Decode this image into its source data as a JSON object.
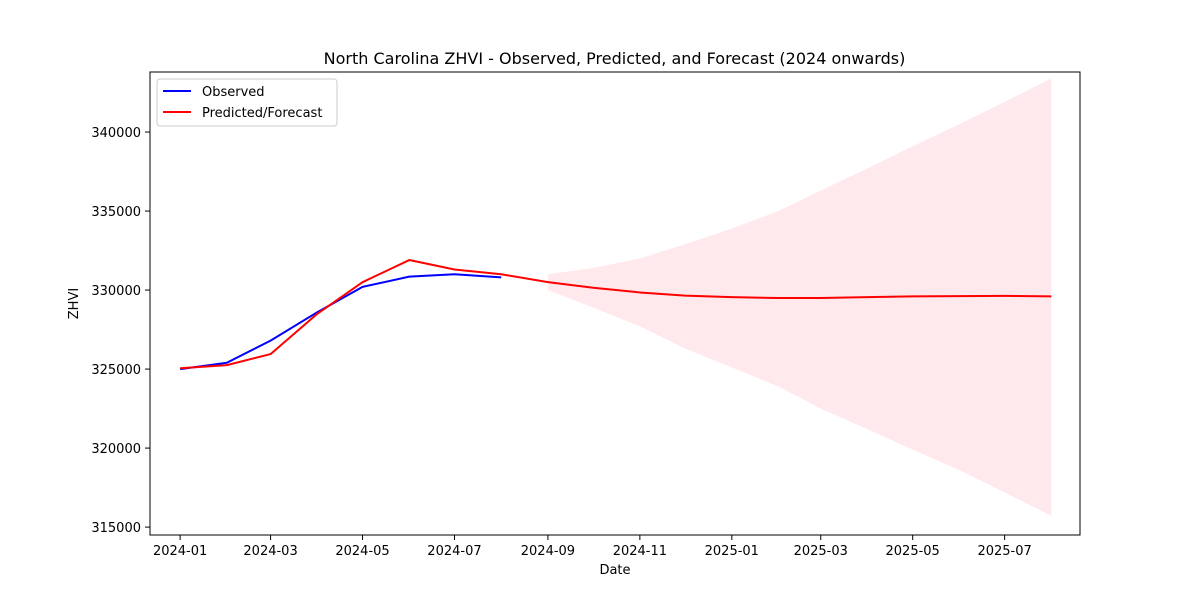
{
  "chart_data": {
    "type": "line",
    "title": "North Carolina ZHVI - Observed, Predicted, and Forecast (2024 onwards)",
    "xlabel": "Date",
    "ylabel": "ZHVI",
    "x_axis": {
      "type": "date",
      "range": [
        "2023-12-12",
        "2025-08-20"
      ],
      "ticks": [
        "2024-01-01",
        "2024-03-01",
        "2024-05-01",
        "2024-07-01",
        "2024-09-01",
        "2024-11-01",
        "2025-01-01",
        "2025-03-01",
        "2025-05-01",
        "2025-07-01"
      ],
      "tick_labels": [
        "2024-01",
        "2024-03",
        "2024-05",
        "2024-07",
        "2024-09",
        "2024-11",
        "2025-01",
        "2025-03",
        "2025-05",
        "2025-07"
      ]
    },
    "ylim": [
      314500,
      343800
    ],
    "y_ticks": [
      315000,
      320000,
      325000,
      330000,
      335000,
      340000
    ],
    "y_tick_labels": [
      "315000",
      "320000",
      "325000",
      "330000",
      "335000",
      "340000"
    ],
    "grid": false,
    "legend": {
      "position": "top-left",
      "entries": [
        "Observed",
        "Predicted/Forecast"
      ]
    },
    "series": [
      {
        "name": "Observed",
        "color": "#0000ff",
        "x": [
          "2024-01-01",
          "2024-02-01",
          "2024-03-01",
          "2024-04-01",
          "2024-05-01",
          "2024-06-01",
          "2024-07-01",
          "2024-08-01"
        ],
        "values": [
          325000,
          325400,
          326800,
          328600,
          330200,
          330850,
          331000,
          330800
        ]
      },
      {
        "name": "Predicted/Forecast",
        "color": "#ff0000",
        "x": [
          "2024-01-01",
          "2024-02-01",
          "2024-03-01",
          "2024-04-01",
          "2024-05-01",
          "2024-06-01",
          "2024-07-01",
          "2024-08-01",
          "2024-09-01",
          "2024-10-01",
          "2024-11-01",
          "2024-12-01",
          "2025-01-01",
          "2025-02-01",
          "2025-03-01",
          "2025-04-01",
          "2025-05-01",
          "2025-06-01",
          "2025-07-01",
          "2025-08-01"
        ],
        "values": [
          325050,
          325250,
          325950,
          328500,
          330500,
          331900,
          331300,
          331000,
          330500,
          330150,
          329850,
          329650,
          329550,
          329500,
          329500,
          329550,
          329600,
          329620,
          329630,
          329600
        ]
      }
    ],
    "confidence_band": {
      "color": "#ffc0cb",
      "x": [
        "2024-09-01",
        "2024-10-01",
        "2024-11-01",
        "2024-12-01",
        "2025-01-01",
        "2025-02-01",
        "2025-03-01",
        "2025-04-01",
        "2025-05-01",
        "2025-06-01",
        "2025-07-01",
        "2025-08-01"
      ],
      "lower": [
        330000,
        328900,
        327700,
        326300,
        325100,
        323900,
        322500,
        321200,
        319900,
        318600,
        317200,
        315700
      ],
      "upper": [
        331000,
        331400,
        332000,
        332900,
        333900,
        335000,
        336300,
        337700,
        339100,
        340500,
        341900,
        343400
      ]
    }
  }
}
